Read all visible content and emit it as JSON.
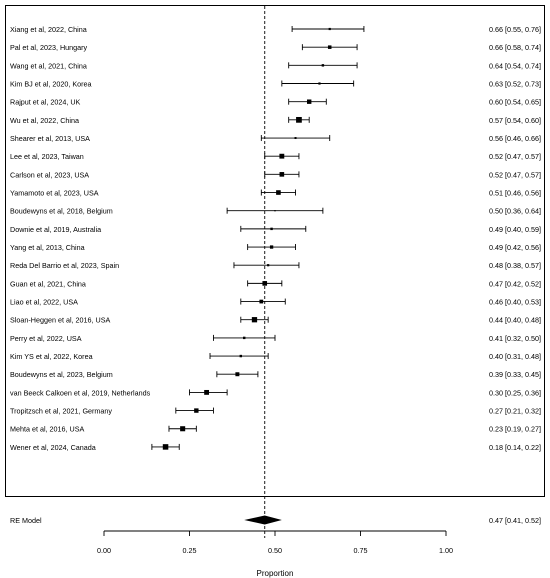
{
  "chart_data": {
    "type": "forest",
    "title": "",
    "xlabel": "Proportion",
    "ylabel": "",
    "xlim": [
      0.0,
      1.0
    ],
    "x_ticks": [
      0.0,
      0.25,
      0.5,
      0.75,
      1.0
    ],
    "x_tick_labels": [
      "0.00",
      "0.25",
      "0.50",
      "0.75",
      "1.00"
    ],
    "reference_line": 0.47,
    "studies": [
      {
        "label": "Xiang et al, 2022, China",
        "est": 0.66,
        "lo": 0.55,
        "hi": 0.76,
        "ci_text": "0.66 [0.55, 0.76]",
        "weight": 1.0
      },
      {
        "label": "Pal et al, 2023, Hungary",
        "est": 0.66,
        "lo": 0.58,
        "hi": 0.74,
        "ci_text": "0.66 [0.58, 0.74]",
        "weight": 1.6
      },
      {
        "label": "Wang et al, 2021, China",
        "est": 0.64,
        "lo": 0.54,
        "hi": 0.74,
        "ci_text": "0.64 [0.54, 0.74]",
        "weight": 1.1
      },
      {
        "label": "Kim BJ et al, 2020, Korea",
        "est": 0.63,
        "lo": 0.52,
        "hi": 0.73,
        "ci_text": "0.63 [0.52, 0.73]",
        "weight": 1.0
      },
      {
        "label": "Rajput et al, 2024, UK",
        "est": 0.6,
        "lo": 0.54,
        "hi": 0.65,
        "ci_text": "0.60 [0.54, 0.65]",
        "weight": 2.0
      },
      {
        "label": "Wu et al, 2022, China",
        "est": 0.57,
        "lo": 0.54,
        "hi": 0.6,
        "ci_text": "0.57 [0.54, 0.60]",
        "weight": 2.6
      },
      {
        "label": "Shearer et al, 2013, USA",
        "est": 0.56,
        "lo": 0.46,
        "hi": 0.66,
        "ci_text": "0.56 [0.46, 0.66]",
        "weight": 0.9
      },
      {
        "label": "Lee et al, 2023, Taiwan",
        "est": 0.52,
        "lo": 0.47,
        "hi": 0.57,
        "ci_text": "0.52 [0.47, 0.57]",
        "weight": 2.2
      },
      {
        "label": "Carlson et al, 2023, USA",
        "est": 0.52,
        "lo": 0.47,
        "hi": 0.57,
        "ci_text": "0.52 [0.47, 0.57]",
        "weight": 2.1
      },
      {
        "label": "Yamamoto et al, 2023, USA",
        "est": 0.51,
        "lo": 0.46,
        "hi": 0.56,
        "ci_text": "0.51 [0.46, 0.56]",
        "weight": 2.1
      },
      {
        "label": "Boudewyns et al, 2018, Belgium",
        "est": 0.5,
        "lo": 0.36,
        "hi": 0.64,
        "ci_text": "0.50 [0.36, 0.64]",
        "weight": 0.6
      },
      {
        "label": "Downie et al, 2019, Australia",
        "est": 0.49,
        "lo": 0.4,
        "hi": 0.59,
        "ci_text": "0.49 [0.40, 0.59]",
        "weight": 1.1
      },
      {
        "label": "Yang et al, 2013, China",
        "est": 0.49,
        "lo": 0.42,
        "hi": 0.56,
        "ci_text": "0.49 [0.42, 0.56]",
        "weight": 1.5
      },
      {
        "label": "Reda Del Barrio et al, 2023, Spain",
        "est": 0.48,
        "lo": 0.38,
        "hi": 0.57,
        "ci_text": "0.48 [0.38, 0.57]",
        "weight": 1.0
      },
      {
        "label": "Guan et al, 2021, China",
        "est": 0.47,
        "lo": 0.42,
        "hi": 0.52,
        "ci_text": "0.47 [0.42, 0.52]",
        "weight": 2.1
      },
      {
        "label": "Liao et al, 2022, USA",
        "est": 0.46,
        "lo": 0.4,
        "hi": 0.53,
        "ci_text": "0.46 [0.40, 0.53]",
        "weight": 1.7
      },
      {
        "label": "Sloan-Heggen et al, 2016, USA",
        "est": 0.44,
        "lo": 0.4,
        "hi": 0.48,
        "ci_text": "0.44 [0.40, 0.48]",
        "weight": 2.4
      },
      {
        "label": "Perry et al, 2022, USA",
        "est": 0.41,
        "lo": 0.32,
        "hi": 0.5,
        "ci_text": "0.41 [0.32, 0.50]",
        "weight": 1.1
      },
      {
        "label": "Kim YS et al, 2022, Korea",
        "est": 0.4,
        "lo": 0.31,
        "hi": 0.48,
        "ci_text": "0.40 [0.31, 0.48]",
        "weight": 1.1
      },
      {
        "label": "Boudewyns et al, 2023, Belgium",
        "est": 0.39,
        "lo": 0.33,
        "hi": 0.45,
        "ci_text": "0.39 [0.33, 0.45]",
        "weight": 1.8
      },
      {
        "label": "van Beeck Calkoen et al, 2019, Netherlands",
        "est": 0.3,
        "lo": 0.25,
        "hi": 0.36,
        "ci_text": "0.30 [0.25, 0.36]",
        "weight": 2.2
      },
      {
        "label": "Tropitzsch et al, 2021, Germany",
        "est": 0.27,
        "lo": 0.21,
        "hi": 0.32,
        "ci_text": "0.27 [0.21, 0.32]",
        "weight": 2.0
      },
      {
        "label": "Mehta et al, 2016, USA",
        "est": 0.23,
        "lo": 0.19,
        "hi": 0.27,
        "ci_text": "0.23 [0.19, 0.27]",
        "weight": 2.3
      },
      {
        "label": "Wener et al, 2024, Canada",
        "est": 0.18,
        "lo": 0.14,
        "hi": 0.22,
        "ci_text": "0.18 [0.14, 0.22]",
        "weight": 2.5
      }
    ],
    "summary": {
      "label": "RE Model",
      "est": 0.47,
      "lo": 0.41,
      "hi": 0.52,
      "ci_text": "0.47 [0.41, 0.52]"
    },
    "colors": {
      "ink": "#000000",
      "background": "#ffffff"
    }
  }
}
